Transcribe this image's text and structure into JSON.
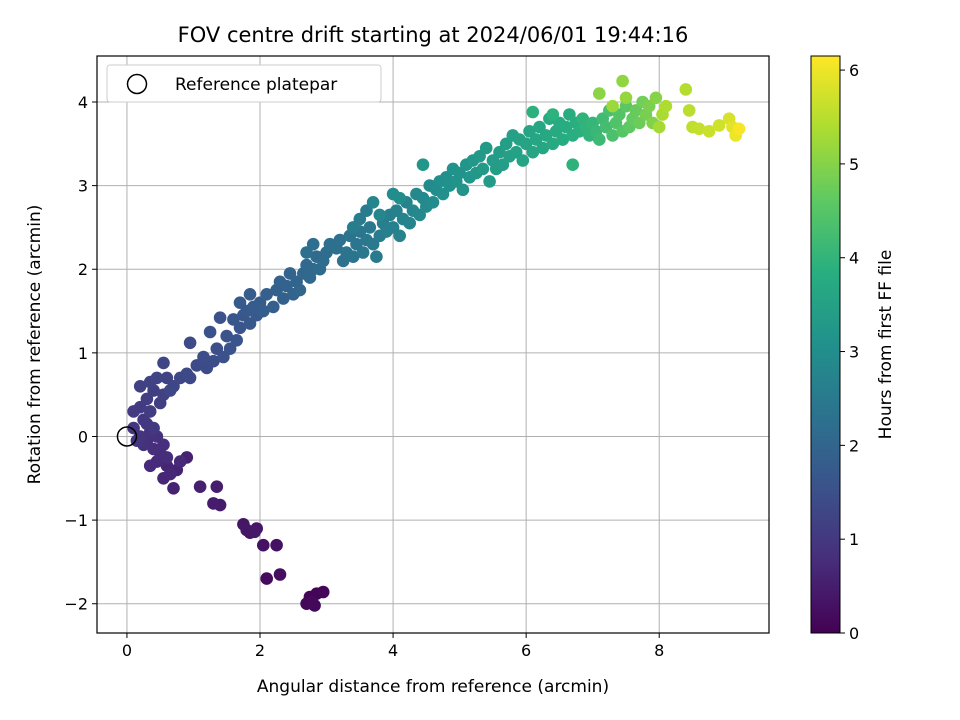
{
  "chart_data": {
    "type": "scatter",
    "title": "FOV centre drift starting at 2024/06/01 19:44:16",
    "xlabel": "Angular distance from reference (arcmin)",
    "ylabel": "Rotation from reference (arcmin)",
    "xlim": [
      -0.45,
      9.65
    ],
    "ylim": [
      -2.35,
      4.55
    ],
    "xticks": [
      0,
      2,
      4,
      6,
      8
    ],
    "yticks": [
      -2,
      -1,
      0,
      1,
      2,
      3,
      4
    ],
    "grid": true,
    "legend": {
      "placement": "upper-left",
      "entries": [
        "Reference platepar"
      ]
    },
    "reference_point": {
      "x": 0,
      "y": 0
    },
    "colorbar": {
      "label": "Hours from first FF file",
      "range": [
        0,
        6.15
      ],
      "ticks": [
        0,
        1,
        2,
        3,
        4,
        5,
        6
      ],
      "colormap": "viridis"
    },
    "points": [
      [
        2.75,
        -1.92,
        0.05
      ],
      [
        2.85,
        -1.88,
        0.07
      ],
      [
        2.95,
        -1.86,
        0.08
      ],
      [
        2.7,
        -2.0,
        0.1
      ],
      [
        2.82,
        -2.02,
        0.12
      ],
      [
        2.78,
        -1.98,
        0.14
      ],
      [
        2.1,
        -1.7,
        0.2
      ],
      [
        2.3,
        -1.65,
        0.22
      ],
      [
        2.05,
        -1.3,
        0.28
      ],
      [
        2.25,
        -1.3,
        0.3
      ],
      [
        1.85,
        -1.15,
        0.33
      ],
      [
        1.75,
        -1.05,
        0.35
      ],
      [
        1.95,
        -1.1,
        0.37
      ],
      [
        1.8,
        -1.12,
        0.38
      ],
      [
        1.92,
        -1.14,
        0.4
      ],
      [
        1.4,
        -0.82,
        0.45
      ],
      [
        1.3,
        -0.8,
        0.47
      ],
      [
        1.35,
        -0.6,
        0.5
      ],
      [
        1.1,
        -0.6,
        0.53
      ],
      [
        0.9,
        -0.25,
        0.58
      ],
      [
        0.7,
        -0.62,
        0.6
      ],
      [
        0.75,
        -0.4,
        0.62
      ],
      [
        0.6,
        -0.35,
        0.64
      ],
      [
        0.55,
        -0.5,
        0.66
      ],
      [
        0.65,
        -0.45,
        0.68
      ],
      [
        0.8,
        -0.3,
        0.7
      ],
      [
        0.45,
        -0.3,
        0.72
      ],
      [
        0.35,
        -0.35,
        0.74
      ],
      [
        0.5,
        -0.2,
        0.76
      ],
      [
        0.6,
        -0.25,
        0.78
      ],
      [
        0.4,
        -0.15,
        0.8
      ],
      [
        0.55,
        -0.1,
        0.82
      ],
      [
        0.3,
        -0.05,
        0.84
      ],
      [
        0.45,
        0.0,
        0.86
      ],
      [
        0.25,
        -0.1,
        0.88
      ],
      [
        0.35,
        0.05,
        0.9
      ],
      [
        0.2,
        0.0,
        0.92
      ],
      [
        0.15,
        -0.05,
        0.94
      ],
      [
        0.1,
        0.1,
        0.96
      ],
      [
        0.3,
        0.15,
        0.98
      ],
      [
        0.25,
        0.2,
        1.0
      ],
      [
        0.4,
        0.1,
        1.02
      ],
      [
        0.1,
        0.3,
        1.04
      ],
      [
        0.2,
        0.35,
        1.06
      ],
      [
        0.35,
        0.3,
        1.08
      ],
      [
        0.3,
        0.45,
        1.1
      ],
      [
        0.5,
        0.4,
        1.12
      ],
      [
        0.4,
        0.55,
        1.14
      ],
      [
        0.2,
        0.6,
        1.16
      ],
      [
        0.55,
        0.5,
        1.18
      ],
      [
        0.35,
        0.65,
        1.2
      ],
      [
        0.6,
        0.7,
        1.22
      ],
      [
        0.45,
        0.7,
        1.24
      ],
      [
        0.55,
        0.88,
        1.26
      ],
      [
        0.7,
        0.6,
        1.28
      ],
      [
        0.8,
        0.7,
        1.3
      ],
      [
        0.65,
        0.55,
        1.32
      ],
      [
        0.95,
        0.7,
        1.34
      ],
      [
        0.9,
        0.75,
        1.36
      ],
      [
        1.05,
        0.85,
        1.38
      ],
      [
        0.95,
        1.12,
        1.4
      ],
      [
        1.2,
        0.82,
        1.42
      ],
      [
        1.15,
        0.95,
        1.44
      ],
      [
        1.3,
        0.9,
        1.46
      ],
      [
        1.35,
        1.05,
        1.48
      ],
      [
        1.45,
        0.95,
        1.5
      ],
      [
        1.25,
        1.25,
        1.52
      ],
      [
        1.4,
        1.42,
        1.54
      ],
      [
        1.55,
        1.05,
        1.56
      ],
      [
        1.5,
        1.2,
        1.58
      ],
      [
        1.65,
        1.15,
        1.6
      ],
      [
        1.7,
        1.3,
        1.62
      ],
      [
        1.6,
        1.4,
        1.64
      ],
      [
        1.75,
        1.45,
        1.66
      ],
      [
        1.85,
        1.35,
        1.68
      ],
      [
        1.8,
        1.5,
        1.7
      ],
      [
        1.7,
        1.6,
        1.72
      ],
      [
        1.95,
        1.45,
        1.74
      ],
      [
        1.9,
        1.55,
        1.76
      ],
      [
        2.0,
        1.6,
        1.78
      ],
      [
        1.85,
        1.7,
        1.8
      ],
      [
        2.05,
        1.5,
        1.82
      ],
      [
        2.1,
        1.7,
        1.84
      ],
      [
        2.2,
        1.55,
        1.86
      ],
      [
        2.25,
        1.75,
        1.88
      ],
      [
        2.35,
        1.65,
        1.9
      ],
      [
        2.3,
        1.85,
        1.92
      ],
      [
        2.4,
        1.8,
        1.94
      ],
      [
        2.45,
        1.95,
        1.96
      ],
      [
        2.5,
        1.7,
        1.98
      ],
      [
        2.55,
        1.85,
        2.0
      ],
      [
        2.6,
        1.75,
        2.02
      ],
      [
        2.65,
        1.95,
        2.04
      ],
      [
        2.7,
        2.05,
        2.06
      ],
      [
        2.75,
        1.9,
        2.08
      ],
      [
        2.8,
        2.0,
        2.1
      ],
      [
        2.85,
        2.15,
        2.12
      ],
      [
        2.9,
        2.0,
        2.14
      ],
      [
        2.95,
        2.1,
        2.16
      ],
      [
        3.0,
        2.2,
        2.18
      ],
      [
        2.7,
        2.2,
        2.2
      ],
      [
        2.8,
        2.3,
        2.22
      ],
      [
        3.05,
        2.3,
        2.24
      ],
      [
        3.15,
        2.25,
        2.26
      ],
      [
        3.2,
        2.35,
        2.28
      ],
      [
        3.25,
        2.1,
        2.3
      ],
      [
        3.3,
        2.2,
        2.32
      ],
      [
        3.35,
        2.4,
        2.34
      ],
      [
        3.4,
        2.15,
        2.36
      ],
      [
        3.45,
        2.3,
        2.38
      ],
      [
        3.5,
        2.45,
        2.4
      ],
      [
        3.55,
        2.2,
        2.42
      ],
      [
        3.6,
        2.35,
        2.44
      ],
      [
        3.65,
        2.5,
        2.46
      ],
      [
        3.7,
        2.3,
        2.48
      ],
      [
        3.75,
        2.15,
        2.5
      ],
      [
        3.8,
        2.4,
        2.52
      ],
      [
        3.5,
        2.6,
        2.54
      ],
      [
        3.6,
        2.7,
        2.56
      ],
      [
        3.4,
        2.5,
        2.58
      ],
      [
        3.85,
        2.55,
        2.6
      ],
      [
        3.9,
        2.45,
        2.62
      ],
      [
        3.95,
        2.65,
        2.64
      ],
      [
        4.0,
        2.5,
        2.66
      ],
      [
        4.05,
        2.7,
        2.68
      ],
      [
        4.1,
        2.4,
        2.7
      ],
      [
        4.15,
        2.6,
        2.72
      ],
      [
        4.2,
        2.8,
        2.74
      ],
      [
        4.25,
        2.55,
        2.76
      ],
      [
        3.7,
        2.8,
        2.78
      ],
      [
        3.8,
        2.65,
        2.8
      ],
      [
        4.3,
        2.7,
        2.82
      ],
      [
        4.35,
        2.9,
        2.84
      ],
      [
        4.4,
        2.65,
        2.86
      ],
      [
        4.45,
        2.85,
        2.88
      ],
      [
        4.5,
        2.75,
        2.9
      ],
      [
        4.55,
        3.0,
        2.92
      ],
      [
        4.6,
        2.8,
        2.94
      ],
      [
        4.65,
        2.95,
        2.96
      ],
      [
        4.0,
        2.9,
        2.98
      ],
      [
        4.1,
        2.85,
        3.0
      ],
      [
        4.7,
        3.05,
        3.02
      ],
      [
        4.75,
        2.9,
        3.04
      ],
      [
        4.8,
        3.1,
        3.06
      ],
      [
        4.85,
        3.0,
        3.08
      ],
      [
        4.9,
        3.2,
        3.1
      ],
      [
        4.95,
        3.05,
        3.12
      ],
      [
        5.0,
        3.15,
        3.14
      ],
      [
        5.05,
        2.95,
        3.16
      ],
      [
        5.1,
        3.25,
        3.18
      ],
      [
        4.45,
        3.25,
        3.2
      ],
      [
        5.15,
        3.1,
        3.22
      ],
      [
        5.2,
        3.3,
        3.24
      ],
      [
        5.25,
        3.15,
        3.26
      ],
      [
        5.3,
        3.35,
        3.28
      ],
      [
        5.35,
        3.2,
        3.3
      ],
      [
        5.4,
        3.45,
        3.32
      ],
      [
        5.45,
        3.05,
        3.34
      ],
      [
        5.5,
        3.3,
        3.36
      ],
      [
        5.55,
        3.2,
        3.38
      ],
      [
        5.6,
        3.4,
        3.4
      ],
      [
        5.65,
        3.25,
        3.42
      ],
      [
        5.7,
        3.5,
        3.44
      ],
      [
        5.75,
        3.35,
        3.46
      ],
      [
        5.8,
        3.6,
        3.48
      ],
      [
        5.85,
        3.4,
        3.5
      ],
      [
        5.9,
        3.55,
        3.52
      ],
      [
        5.95,
        3.3,
        3.54
      ],
      [
        6.0,
        3.5,
        3.56
      ],
      [
        6.05,
        3.65,
        3.58
      ],
      [
        6.1,
        3.4,
        3.6
      ],
      [
        6.15,
        3.55,
        3.62
      ],
      [
        6.2,
        3.7,
        3.64
      ],
      [
        6.25,
        3.45,
        3.66
      ],
      [
        6.3,
        3.6,
        3.68
      ],
      [
        6.35,
        3.8,
        3.7
      ],
      [
        6.4,
        3.5,
        3.72
      ],
      [
        6.45,
        3.65,
        3.74
      ],
      [
        6.5,
        3.75,
        3.76
      ],
      [
        6.55,
        3.55,
        3.78
      ],
      [
        6.6,
        3.7,
        3.8
      ],
      [
        6.65,
        3.85,
        3.82
      ],
      [
        6.7,
        3.6,
        3.84
      ],
      [
        6.75,
        3.75,
        3.86
      ],
      [
        6.8,
        3.65,
        3.88
      ],
      [
        6.1,
        3.88,
        3.9
      ],
      [
        6.4,
        3.85,
        3.92
      ],
      [
        6.7,
        3.25,
        3.94
      ],
      [
        6.85,
        3.8,
        3.96
      ],
      [
        6.9,
        3.7,
        3.98
      ],
      [
        6.95,
        3.6,
        4.0
      ],
      [
        7.0,
        3.75,
        4.05
      ],
      [
        7.05,
        3.65,
        4.1
      ],
      [
        7.1,
        3.55,
        4.15
      ],
      [
        7.15,
        3.8,
        4.2
      ],
      [
        7.2,
        3.7,
        4.25
      ],
      [
        7.25,
        3.9,
        4.3
      ],
      [
        7.3,
        3.6,
        4.35
      ],
      [
        7.35,
        3.75,
        4.4
      ],
      [
        7.4,
        3.85,
        4.45
      ],
      [
        7.45,
        3.65,
        4.5
      ],
      [
        7.5,
        3.95,
        4.55
      ],
      [
        7.55,
        3.7,
        4.6
      ],
      [
        7.6,
        3.8,
        4.65
      ],
      [
        7.65,
        3.9,
        4.7
      ],
      [
        7.7,
        3.75,
        4.75
      ],
      [
        7.75,
        4.0,
        4.8
      ],
      [
        7.8,
        3.85,
        4.85
      ],
      [
        7.85,
        3.95,
        4.9
      ],
      [
        7.9,
        3.75,
        4.95
      ],
      [
        7.95,
        4.05,
        5.0
      ],
      [
        7.1,
        4.1,
        5.05
      ],
      [
        7.45,
        4.25,
        5.1
      ],
      [
        7.5,
        4.05,
        5.15
      ],
      [
        7.3,
        3.95,
        5.2
      ],
      [
        8.0,
        3.7,
        5.3
      ],
      [
        8.05,
        3.85,
        5.35
      ],
      [
        8.1,
        3.95,
        5.4
      ],
      [
        8.4,
        4.15,
        5.45
      ],
      [
        8.45,
        3.9,
        5.5
      ],
      [
        8.5,
        3.7,
        5.55
      ],
      [
        8.6,
        3.68,
        5.6
      ],
      [
        8.75,
        3.65,
        5.65
      ],
      [
        8.9,
        3.72,
        5.7
      ],
      [
        9.05,
        3.8,
        5.8
      ],
      [
        9.1,
        3.7,
        5.9
      ],
      [
        9.15,
        3.6,
        6.0
      ],
      [
        9.2,
        3.68,
        6.1
      ]
    ]
  }
}
